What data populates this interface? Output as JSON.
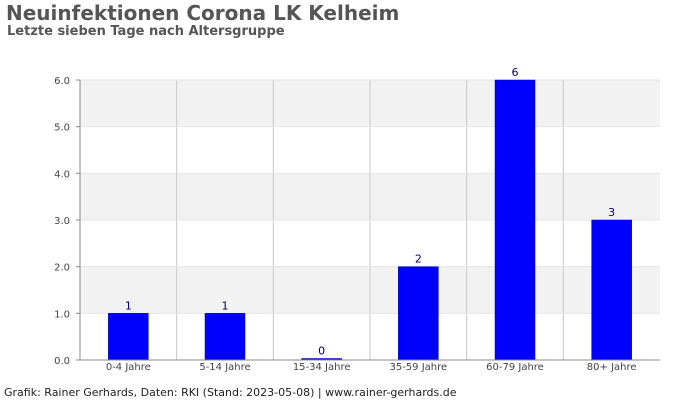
{
  "header": {
    "title": "Neuinfektionen Corona LK Kelheim",
    "subtitle": "Letzte sieben Tage nach Altersgruppe"
  },
  "footer": {
    "text": "Grafik: Rainer Gerhards, Daten: RKI (Stand: 2023-05-08) | www.rainer-gerhards.de"
  },
  "chart_data": {
    "type": "bar",
    "title": "Neuinfektionen Corona LK Kelheim",
    "subtitle": "Letzte sieben Tage nach Altersgruppe",
    "categories": [
      "0-4 Jahre",
      "5-14 Jahre",
      "15-34 Jahre",
      "35-59 Jahre",
      "60-79 Jahre",
      "80+ Jahre"
    ],
    "values": [
      1,
      1,
      0,
      2,
      6,
      3
    ],
    "data_labels": [
      "1",
      "1",
      "0",
      "2",
      "6",
      "3"
    ],
    "yticks": [
      "0.0",
      "1.0",
      "2.0",
      "3.0",
      "4.0",
      "5.0",
      "6.0"
    ],
    "ylim": [
      0,
      6
    ],
    "xlabel": "",
    "ylabel": "",
    "grid": true,
    "bar_color": "#0000ff",
    "band_color": "#f2f2f2",
    "label_color": "#000066"
  }
}
